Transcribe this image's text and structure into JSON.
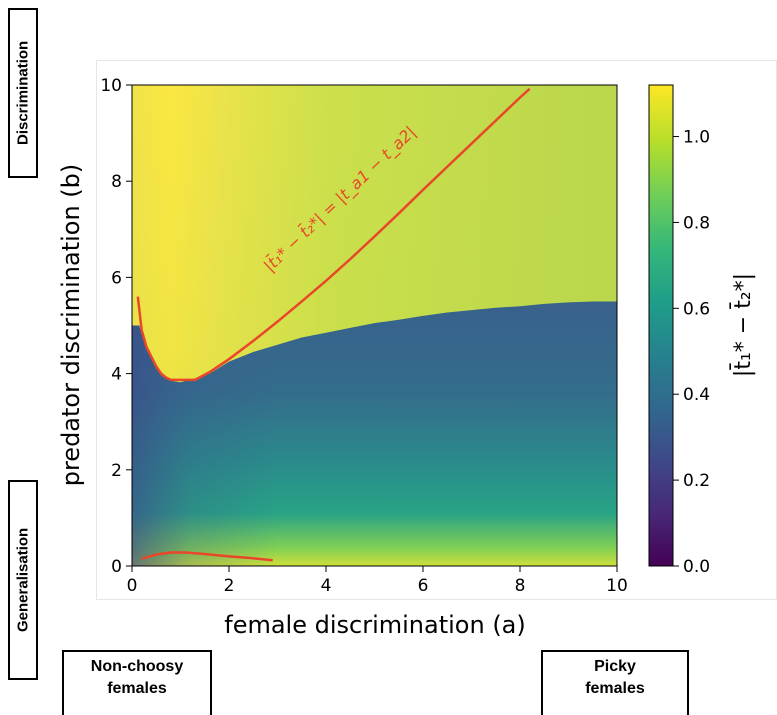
{
  "chart_data": {
    "type": "heatmap",
    "xlabel": "female discrimination (a)",
    "ylabel": "predator discrimination (b)",
    "colorbar_label": "|t̄₁* − t̄₂*|",
    "xlim": [
      0,
      10
    ],
    "ylim": [
      0,
      10
    ],
    "xticks": [
      "0",
      "2",
      "4",
      "6",
      "8",
      "10"
    ],
    "yticks": [
      "0",
      "2",
      "4",
      "6",
      "8",
      "10"
    ],
    "colorbar_range": [
      0,
      1.12
    ],
    "colorbar_ticks": [
      "0.0",
      "0.2",
      "0.4",
      "0.6",
      "0.8",
      "1.0"
    ],
    "colormap": "viridis",
    "boundary": {
      "a": [
        0.15,
        0.3,
        0.5,
        0.8,
        1.0,
        1.3,
        1.6,
        2.0,
        2.5,
        3.0,
        3.5,
        4.0,
        4.5,
        5.0,
        5.5,
        6.0,
        6.5,
        7.0,
        7.5,
        8.0,
        8.5,
        9.0,
        9.5,
        10.0
      ],
      "b": [
        5.0,
        4.5,
        4.1,
        3.85,
        3.82,
        3.9,
        4.0,
        4.25,
        4.45,
        4.6,
        4.75,
        4.85,
        4.95,
        5.05,
        5.12,
        5.2,
        5.27,
        5.32,
        5.37,
        5.4,
        5.45,
        5.48,
        5.5,
        5.5
      ]
    },
    "contour_label": "|t̄₁* − t̄₂*| = |t_a1 − t_a2|",
    "contour_color": "#e8472a",
    "contour_upper": {
      "a": [
        0.12,
        0.2,
        0.3,
        0.4,
        0.5,
        0.6,
        0.7,
        0.8,
        1.3,
        1.6,
        2.0,
        2.5,
        3.0,
        3.5,
        4.0,
        4.5,
        5.0,
        5.5,
        6.0,
        6.5,
        7.0,
        7.5,
        8.0,
        8.2
      ],
      "b": [
        5.6,
        4.9,
        4.55,
        4.35,
        4.15,
        4.0,
        3.92,
        3.87,
        3.87,
        4.03,
        4.3,
        4.68,
        5.08,
        5.5,
        5.93,
        6.38,
        6.85,
        7.33,
        7.82,
        8.3,
        8.78,
        9.26,
        9.74,
        9.92
      ]
    },
    "contour_lower": {
      "a": [
        0.2,
        0.5,
        0.8,
        1.1,
        1.5,
        2.0,
        2.5,
        2.9
      ],
      "b": [
        0.15,
        0.24,
        0.28,
        0.28,
        0.25,
        0.2,
        0.16,
        0.12
      ]
    }
  },
  "labels": {
    "discrimination": "Discrimination",
    "generalisation": "Generalisation",
    "non_choosy_line1": "Non-choosy",
    "non_choosy_line2": "females",
    "picky_line1": "Picky",
    "picky_line2": "females"
  }
}
